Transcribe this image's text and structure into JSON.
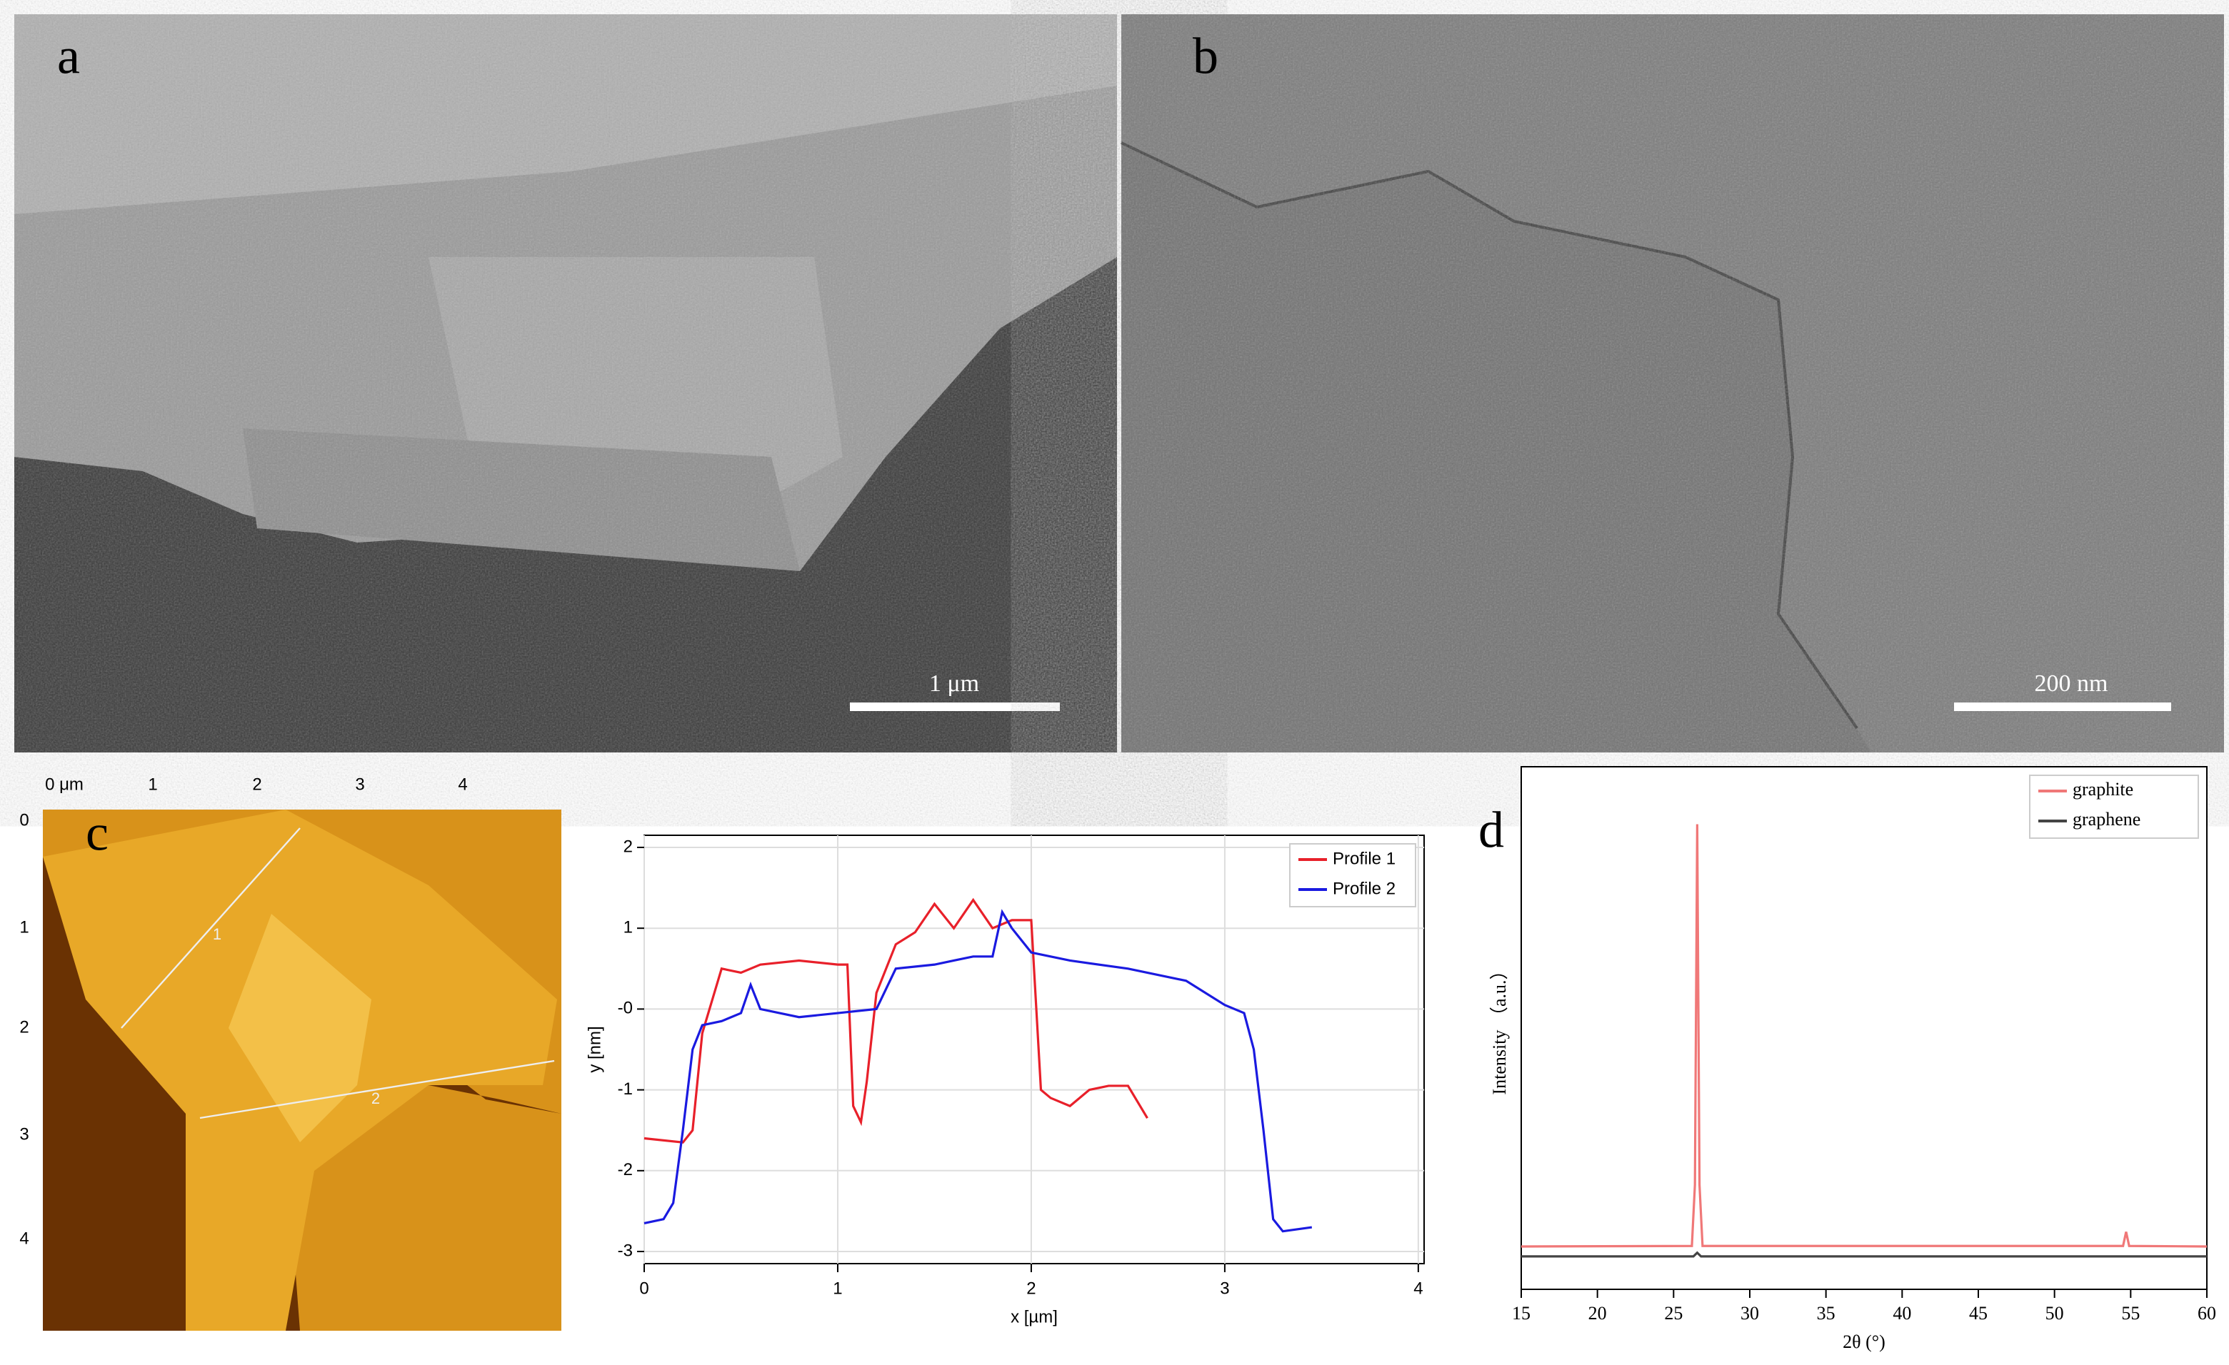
{
  "panels": {
    "a": {
      "label": "a",
      "scale_bar": "1 μm"
    },
    "b": {
      "label": "b",
      "scale_bar": "200 nm"
    },
    "c": {
      "label": "c"
    },
    "d": {
      "label": "d"
    }
  },
  "afm": {
    "x_labels": [
      "0 μm",
      "1",
      "2",
      "3",
      "4"
    ],
    "y_labels": [
      "0",
      "1",
      "2",
      "3",
      "4"
    ],
    "line_labels": [
      "1",
      "2"
    ]
  },
  "chart_data": [
    {
      "type": "line",
      "xlabel": "x [µm]",
      "ylabel": "y [nm]",
      "xlim": [
        0,
        4.03
      ],
      "ylim": [
        -3.15,
        2.15
      ],
      "xticks": [
        0,
        1,
        2,
        3,
        4
      ],
      "yticks": [
        -3,
        -2,
        -1,
        {
          "value": 0,
          "label": "-0"
        },
        1,
        2
      ],
      "grid": true,
      "legend": "top-right",
      "series": [
        {
          "name": "Profile 1",
          "color": "#e8202a",
          "x": [
            0,
            0.2,
            0.25,
            0.3,
            0.4,
            0.5,
            0.6,
            0.8,
            1.0,
            1.05,
            1.08,
            1.12,
            1.15,
            1.2,
            1.3,
            1.4,
            1.5,
            1.6,
            1.7,
            1.8,
            1.9,
            2.0,
            2.05,
            2.1,
            2.2,
            2.3,
            2.4,
            2.5,
            2.6
          ],
          "values": [
            -1.6,
            -1.65,
            -1.5,
            -0.3,
            0.5,
            0.45,
            0.55,
            0.6,
            0.55,
            0.55,
            -1.2,
            -1.4,
            -0.9,
            0.2,
            0.8,
            0.95,
            1.3,
            1.0,
            1.35,
            1.0,
            1.1,
            1.1,
            -1.0,
            -1.1,
            -1.2,
            -1.0,
            -0.95,
            -0.95,
            -1.35
          ]
        },
        {
          "name": "Profile 2",
          "color": "#1a1ae0",
          "x": [
            0,
            0.1,
            0.15,
            0.2,
            0.25,
            0.3,
            0.4,
            0.5,
            0.55,
            0.6,
            0.8,
            1.0,
            1.2,
            1.3,
            1.5,
            1.6,
            1.7,
            1.8,
            1.85,
            1.9,
            2.0,
            2.2,
            2.5,
            2.8,
            3.0,
            3.1,
            3.15,
            3.2,
            3.25,
            3.3,
            3.45
          ],
          "values": [
            -2.65,
            -2.6,
            -2.4,
            -1.5,
            -0.5,
            -0.2,
            -0.15,
            -0.05,
            0.3,
            0.0,
            -0.1,
            -0.05,
            0.0,
            0.5,
            0.55,
            0.6,
            0.65,
            0.65,
            1.2,
            1.0,
            0.7,
            0.6,
            0.5,
            0.35,
            0.05,
            -0.05,
            -0.5,
            -1.5,
            -2.6,
            -2.75,
            -2.7
          ]
        }
      ]
    },
    {
      "type": "line",
      "xlabel": "2θ (°)",
      "ylabel": "Intensity （a.u.）",
      "xlim": [
        15,
        60
      ],
      "ylim": [
        0,
        100
      ],
      "xticks": [
        15,
        20,
        25,
        30,
        35,
        40,
        45,
        50,
        55,
        60
      ],
      "grid": false,
      "legend": "top-right",
      "series": [
        {
          "name": "graphite",
          "color": "#f07878",
          "x": [
            15,
            26.2,
            26.4,
            26.55,
            26.7,
            26.9,
            54.5,
            54.7,
            54.9,
            60
          ],
          "values": [
            8.2,
            8.3,
            20,
            89,
            20,
            8.3,
            8.3,
            11,
            8.3,
            8.2
          ]
        },
        {
          "name": "graphene",
          "color": "#444444",
          "x": [
            15,
            26.3,
            26.55,
            26.8,
            60
          ],
          "values": [
            6.3,
            6.3,
            7,
            6.3,
            6.3
          ]
        }
      ]
    }
  ]
}
